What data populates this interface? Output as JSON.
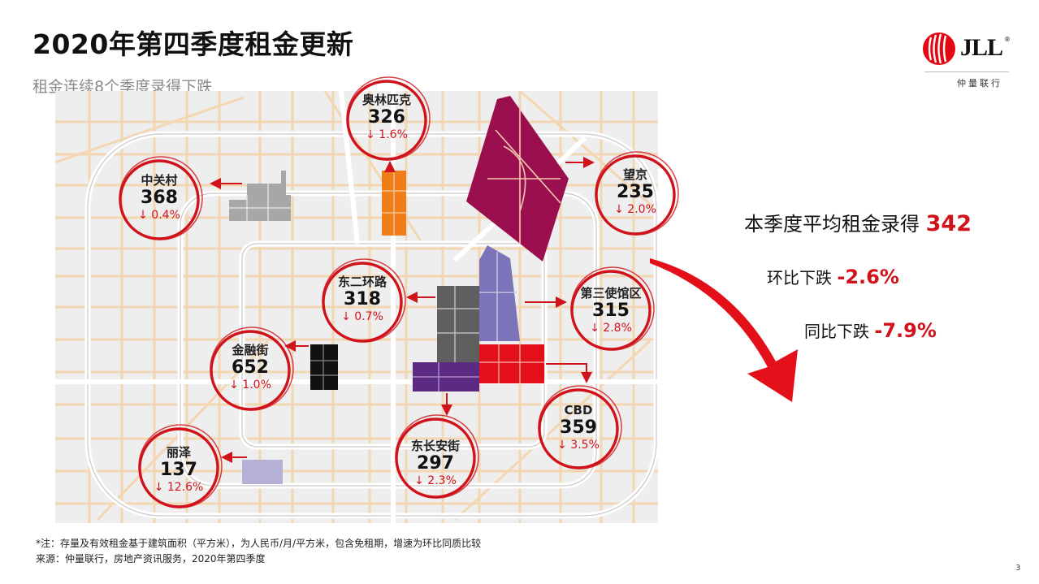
{
  "header": {
    "title": "2020年第四季度租金更新",
    "subtitle": "租金连续8个季度录得下跌"
  },
  "logo": {
    "name": "JLL",
    "reg": "®",
    "chinese_name": "仲量联行"
  },
  "map": {
    "districts": [
      {
        "id": "aolinpike",
        "name": "奥林匹克",
        "rent": "326",
        "change": "↓ 1.6%",
        "color": "#ef7d1a"
      },
      {
        "id": "zhongguancun",
        "name": "中关村",
        "rent": "368",
        "change": "↓ 0.4%",
        "color": "#a7a7a7"
      },
      {
        "id": "wangjing",
        "name": "望京",
        "rent": "235",
        "change": "↓ 2.0%",
        "color": "#9c0f4f"
      },
      {
        "id": "dongerhuanlu",
        "name": "东二环路",
        "rent": "318",
        "change": "↓ 0.7%",
        "color": "#5f5f5f"
      },
      {
        "id": "disanshiguanqu",
        "name": "第三使馆区",
        "rent": "315",
        "change": "↓ 2.8%",
        "color": "#7c74b8"
      },
      {
        "id": "jinrongjie",
        "name": "金融街",
        "rent": "652",
        "change": "↓ 1.0%",
        "color": "#111111"
      },
      {
        "id": "cbd",
        "name": "CBD",
        "rent": "359",
        "change": "↓ 3.5%",
        "color": "#e3101a"
      },
      {
        "id": "dongchanganjie",
        "name": "东长安街",
        "rent": "297",
        "change": "↓ 2.3%",
        "color": "#5b2a82"
      },
      {
        "id": "lize",
        "name": "丽泽",
        "rent": "137",
        "change": "↓ 12.6%",
        "color": "#b5b0d6"
      }
    ]
  },
  "summary": {
    "avg_label": "本季度平均租金录得",
    "avg_value": "342",
    "qoq_label": "环比下跌",
    "qoq_value": "-2.6%",
    "yoy_label": "同比下跌",
    "yoy_value": "-7.9%"
  },
  "footer": {
    "note": "*注：存量及有效租金基于建筑面积（平方米），为人民币/月/平方米，包含免租期，增速为环比同质比较",
    "source": "来源：仲量联行，房地产资讯服务，2020年第四季度",
    "page_number": "3"
  },
  "colors": {
    "accent": "#d0121b",
    "road": "#f3d7b3",
    "road_major": "#ffffff",
    "map_bg": "#eeeeee"
  }
}
